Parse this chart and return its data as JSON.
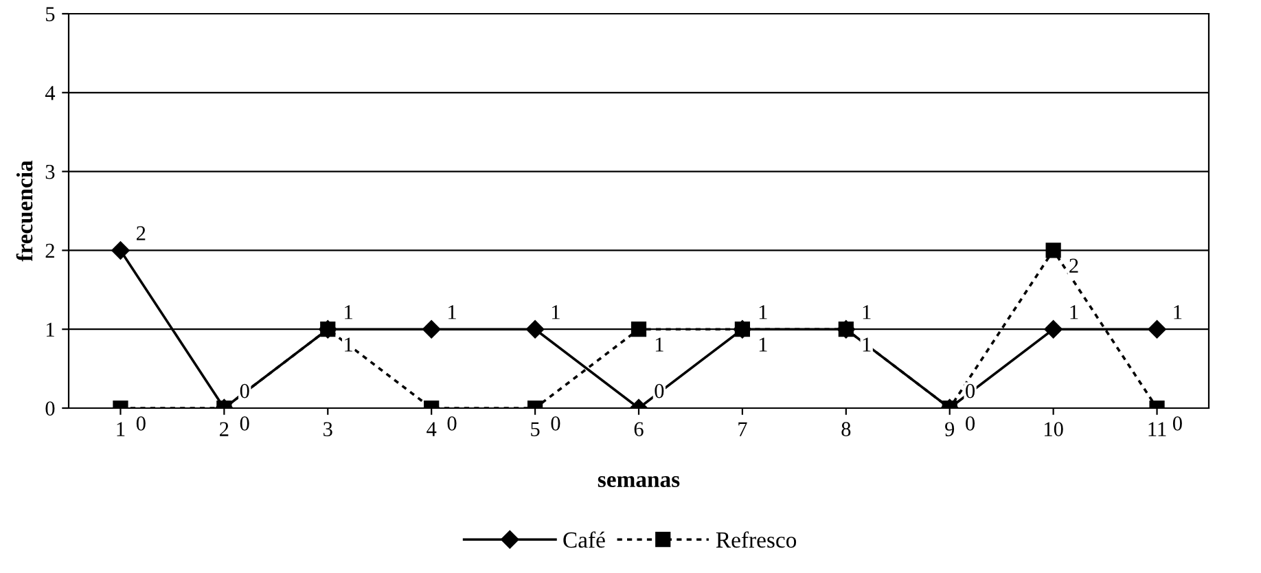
{
  "chart_data": {
    "type": "line",
    "xlabel": "semanas",
    "ylabel": "frecuencia",
    "categories": [
      "1",
      "2",
      "3",
      "4",
      "5",
      "6",
      "7",
      "8",
      "9",
      "10",
      "11"
    ],
    "series": [
      {
        "name": "Café",
        "color": "#000000",
        "marker": "diamond",
        "line_style": "solid",
        "values": [
          2,
          0,
          1,
          1,
          1,
          0,
          1,
          1,
          0,
          1,
          1
        ]
      },
      {
        "name": "Refresco",
        "color": "#000000",
        "marker": "square",
        "line_style": "dotted",
        "values": [
          0,
          0,
          1,
          0,
          0,
          1,
          1,
          1,
          0,
          2,
          0
        ]
      }
    ],
    "ylim": [
      0,
      5
    ],
    "yticks": [
      0,
      1,
      2,
      3,
      4,
      5
    ],
    "grid": "y",
    "legend": "bottom",
    "data_labels": true
  }
}
